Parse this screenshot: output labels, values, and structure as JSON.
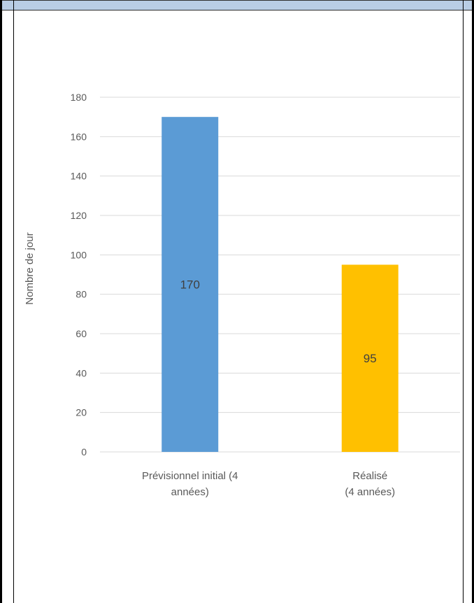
{
  "chart_data": {
    "type": "bar",
    "categories": [
      [
        "Prévisionnel initial  (4",
        "années)"
      ],
      [
        "Réalisé",
        "(4 années)"
      ]
    ],
    "values": [
      170,
      95
    ],
    "data_labels": [
      "170",
      "95"
    ],
    "colors": [
      "#5b9bd5",
      "#ffc000"
    ],
    "ylabel": "Nombre de jour",
    "xlabel": "",
    "title": "",
    "ylim": [
      0,
      180
    ],
    "yticks": [
      0,
      20,
      40,
      60,
      80,
      100,
      120,
      140,
      160,
      180
    ],
    "grid": true,
    "legend": "none"
  }
}
